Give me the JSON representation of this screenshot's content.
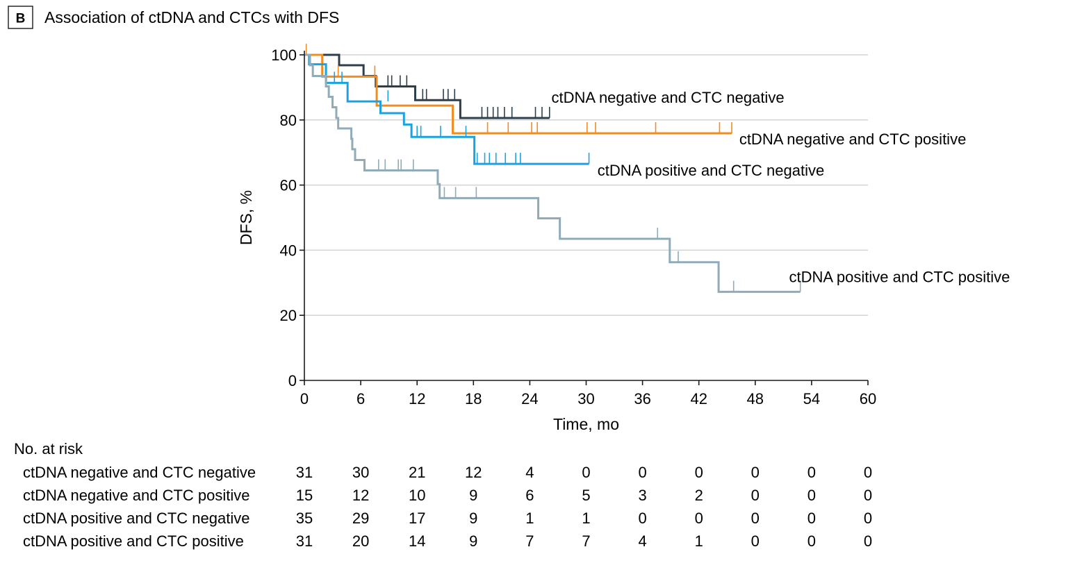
{
  "panel": {
    "letter": "B",
    "title": "Association of ctDNA and CTCs with DFS"
  },
  "colors": {
    "neg_neg": "#2e3f4c",
    "neg_pos": "#f28c1f",
    "pos_neg": "#1aa3df",
    "pos_pos": "#8facb8",
    "grid": "#d3d3d3",
    "axis": "#1a1a1a"
  },
  "chart_data": {
    "type": "line",
    "xlabel": "Time, mo",
    "ylabel": "DFS, %",
    "xlim": [
      0,
      60
    ],
    "ylim": [
      0,
      100
    ],
    "xticks": [
      "0",
      "6",
      "12",
      "18",
      "24",
      "30",
      "36",
      "42",
      "48",
      "54",
      "60"
    ],
    "yticks": [
      "0",
      "20",
      "40",
      "60",
      "80",
      "100"
    ],
    "grid": "horizontal",
    "series": [
      {
        "key": "neg_neg",
        "name": "ctDNA negative and CTC negative",
        "color": "#2e3f4c",
        "steps": [
          [
            0,
            100
          ],
          [
            3.7,
            96.8
          ],
          [
            6.3,
            93.5
          ],
          [
            7.6,
            90.3
          ],
          [
            11.8,
            86.1
          ],
          [
            16.6,
            80.6
          ],
          [
            26.1,
            80.6
          ]
        ],
        "censors": [
          [
            8.9,
            90.3
          ],
          [
            9.3,
            90.3
          ],
          [
            10.2,
            90.3
          ],
          [
            10.9,
            90.3
          ],
          [
            12.6,
            86.1
          ],
          [
            13.0,
            86.1
          ],
          [
            14.8,
            86.1
          ],
          [
            15.3,
            86.1
          ],
          [
            16.0,
            86.1
          ],
          [
            18.9,
            80.6
          ],
          [
            19.5,
            80.6
          ],
          [
            20.1,
            80.6
          ],
          [
            20.6,
            80.6
          ],
          [
            21.3,
            80.6
          ],
          [
            22.1,
            80.6
          ],
          [
            24.6,
            80.6
          ],
          [
            25.3,
            80.6
          ],
          [
            26.1,
            80.6
          ]
        ]
      },
      {
        "key": "neg_pos",
        "name": "ctDNA negative and CTC positive",
        "color": "#f28c1f",
        "steps": [
          [
            0,
            100
          ],
          [
            1.9,
            93.3
          ],
          [
            7.7,
            84.4
          ],
          [
            15.8,
            75.9
          ],
          [
            45.5,
            75.9
          ]
        ],
        "censors": [
          [
            0.2,
            100
          ],
          [
            3.6,
            93.3
          ],
          [
            7.5,
            93.3
          ],
          [
            19.5,
            75.9
          ],
          [
            21.7,
            75.9
          ],
          [
            24.2,
            75.9
          ],
          [
            24.8,
            75.9
          ],
          [
            30.1,
            75.9
          ],
          [
            31.0,
            75.9
          ],
          [
            37.4,
            75.9
          ],
          [
            44.2,
            75.9
          ],
          [
            45.5,
            75.9
          ]
        ]
      },
      {
        "key": "pos_neg",
        "name": "ctDNA positive and CTC negative",
        "color": "#1aa3df",
        "steps": [
          [
            0,
            100
          ],
          [
            0.5,
            97.1
          ],
          [
            2.3,
            91.4
          ],
          [
            4.6,
            85.7
          ],
          [
            8.1,
            82.1
          ],
          [
            10.6,
            78.6
          ],
          [
            11.4,
            74.8
          ],
          [
            18.1,
            66.5
          ],
          [
            30.3,
            66.5
          ]
        ],
        "censors": [
          [
            3.2,
            91.4
          ],
          [
            4.0,
            91.4
          ],
          [
            8.9,
            85.7
          ],
          [
            12.0,
            74.8
          ],
          [
            12.4,
            74.8
          ],
          [
            14.5,
            74.8
          ],
          [
            17.2,
            74.8
          ],
          [
            18.4,
            66.5
          ],
          [
            19.2,
            66.5
          ],
          [
            19.7,
            66.5
          ],
          [
            20.4,
            66.5
          ],
          [
            21.4,
            66.5
          ],
          [
            22.5,
            66.5
          ],
          [
            23.0,
            66.5
          ],
          [
            30.3,
            66.5
          ]
        ]
      },
      {
        "key": "pos_pos",
        "name": "ctDNA positive and CTC positive",
        "color": "#8facb8",
        "steps": [
          [
            0,
            100
          ],
          [
            0.6,
            96.8
          ],
          [
            0.9,
            93.5
          ],
          [
            2.3,
            90.3
          ],
          [
            2.6,
            87.1
          ],
          [
            3.0,
            83.9
          ],
          [
            3.4,
            80.6
          ],
          [
            3.6,
            77.4
          ],
          [
            5.0,
            74.2
          ],
          [
            5.1,
            71.0
          ],
          [
            5.4,
            67.7
          ],
          [
            6.4,
            64.5
          ],
          [
            14.2,
            60.3
          ],
          [
            14.4,
            56.0
          ],
          [
            24.9,
            49.8
          ],
          [
            27.2,
            43.5
          ],
          [
            38.9,
            36.3
          ],
          [
            44.1,
            27.2
          ],
          [
            52.8,
            27.2
          ]
        ],
        "censors": [
          [
            7.9,
            64.5
          ],
          [
            8.6,
            64.5
          ],
          [
            10.0,
            64.5
          ],
          [
            10.3,
            64.5
          ],
          [
            11.6,
            64.5
          ],
          [
            14.9,
            56.0
          ],
          [
            16.1,
            56.0
          ],
          [
            18.3,
            56.0
          ],
          [
            37.6,
            43.5
          ],
          [
            39.8,
            36.3
          ],
          [
            45.7,
            27.2
          ],
          [
            52.8,
            27.2
          ]
        ]
      }
    ],
    "annotations": [
      {
        "key": "neg_neg",
        "text": "ctDNA negative and CTC negative",
        "x": 26.3,
        "y": 85.3
      },
      {
        "key": "neg_pos",
        "text": "ctDNA negative and CTC positive",
        "x": 46.3,
        "y": 72.5
      },
      {
        "key": "pos_neg",
        "text": "ctDNA positive and CTC negative",
        "x": 31.2,
        "y": 62.9
      },
      {
        "key": "pos_pos",
        "text": "ctDNA positive and CTC positive",
        "x": 51.6,
        "y": 30.2
      }
    ]
  },
  "risk_table": {
    "title": "No. at risk",
    "rows": [
      {
        "label": "ctDNA negative and CTC negative",
        "values": [
          "31",
          "30",
          "21",
          "12",
          "4",
          "0",
          "0",
          "0",
          "0",
          "0",
          "0"
        ]
      },
      {
        "label": "ctDNA negative and CTC positive",
        "values": [
          "15",
          "12",
          "10",
          "9",
          "6",
          "5",
          "3",
          "2",
          "0",
          "0",
          "0"
        ]
      },
      {
        "label": "ctDNA positive and CTC negative",
        "values": [
          "35",
          "29",
          "17",
          "9",
          "1",
          "1",
          "0",
          "0",
          "0",
          "0",
          "0"
        ]
      },
      {
        "label": "ctDNA positive and CTC positive",
        "values": [
          "31",
          "20",
          "14",
          "9",
          "7",
          "7",
          "4",
          "1",
          "0",
          "0",
          "0"
        ]
      }
    ]
  }
}
